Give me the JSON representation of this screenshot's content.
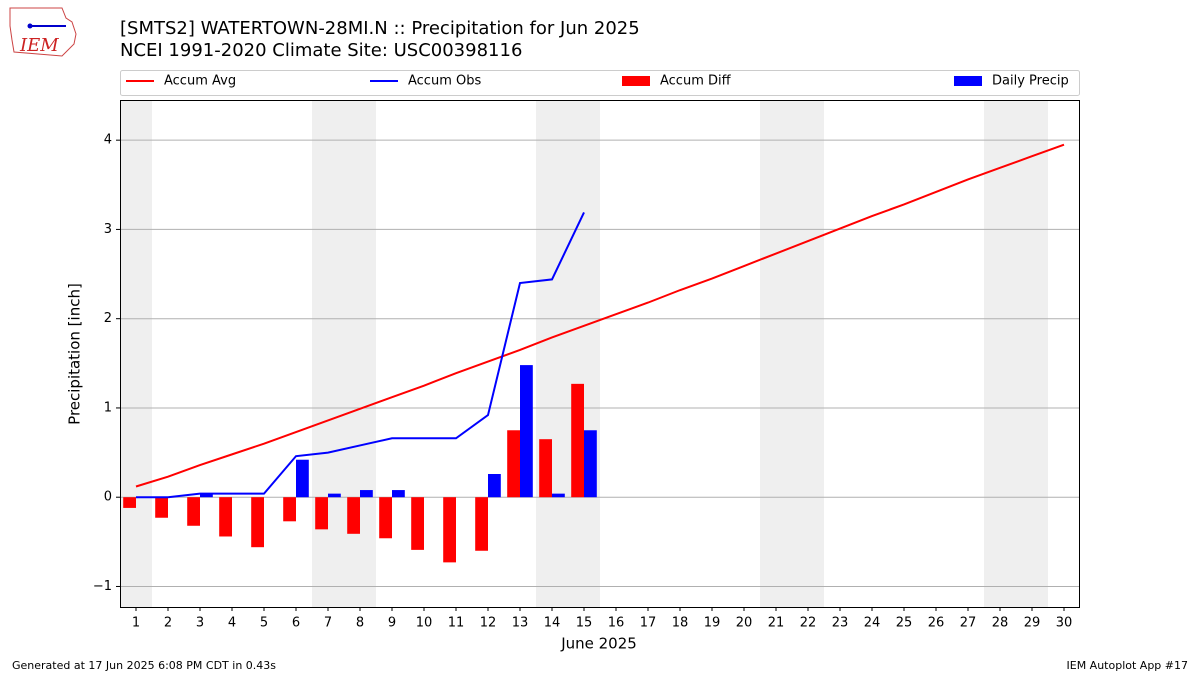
{
  "chart_data": {
    "type": "bar",
    "title": "[SMTS2] WATERTOWN-28MI.N :: Precipitation for Jun 2025",
    "subtitle": "NCEI 1991-2020 Climate Site: USC00398116",
    "logo_text": "IEM",
    "xlabel": "June 2025",
    "ylabel": "Precipitation [inch]",
    "x": [
      1,
      2,
      3,
      4,
      5,
      6,
      7,
      8,
      9,
      10,
      11,
      12,
      13,
      14,
      15,
      16,
      17,
      18,
      19,
      20,
      21,
      22,
      23,
      24,
      25,
      26,
      27,
      28,
      29,
      30
    ],
    "xlim": [
      0.5,
      30.5
    ],
    "xticks": [
      1,
      2,
      3,
      4,
      5,
      6,
      7,
      8,
      9,
      10,
      11,
      12,
      13,
      14,
      15,
      16,
      17,
      18,
      19,
      20,
      21,
      22,
      23,
      24,
      25,
      26,
      27,
      28,
      29,
      30
    ],
    "ylim": [
      -1.23,
      4.45
    ],
    "yticks": [
      {
        "value": -1,
        "label": "−1"
      },
      0,
      1,
      2,
      3,
      4
    ],
    "grid": true,
    "legend": "top",
    "series": [
      {
        "name": "Accum Avg",
        "type": "line",
        "color": "#ff0000",
        "values": [
          0.12,
          0.23,
          0.36,
          0.48,
          0.6,
          0.73,
          0.86,
          0.99,
          1.12,
          1.25,
          1.39,
          1.52,
          1.65,
          1.79,
          1.92,
          2.05,
          2.18,
          2.32,
          2.45,
          2.59,
          2.73,
          2.87,
          3.01,
          3.15,
          3.28,
          3.42,
          3.56,
          3.69,
          3.82,
          3.95
        ]
      },
      {
        "name": "Accum Obs",
        "type": "line",
        "color": "#0000ff",
        "values": [
          0,
          0,
          0.04,
          0.04,
          0.04,
          0.46,
          0.5,
          0.58,
          0.66,
          0.66,
          0.66,
          0.92,
          2.4,
          2.44,
          3.19,
          null,
          null,
          null,
          null,
          null,
          null,
          null,
          null,
          null,
          null,
          null,
          null,
          null,
          null,
          null
        ]
      },
      {
        "name": "Accum Diff",
        "type": "bar",
        "color": "#ff0000",
        "values": [
          -0.12,
          -0.23,
          -0.32,
          -0.44,
          -0.56,
          -0.27,
          -0.36,
          -0.41,
          -0.46,
          -0.59,
          -0.73,
          -0.6,
          0.75,
          0.65,
          1.27,
          null,
          null,
          null,
          null,
          null,
          null,
          null,
          null,
          null,
          null,
          null,
          null,
          null,
          null,
          null
        ]
      },
      {
        "name": "Daily Precip",
        "type": "bar",
        "color": "#0000ff",
        "values": [
          0,
          0,
          0.04,
          0,
          0,
          0.42,
          0.04,
          0.08,
          0.08,
          0,
          0,
          0.26,
          1.48,
          0.04,
          0.75,
          null,
          null,
          null,
          null,
          null,
          null,
          null,
          null,
          null,
          null,
          null,
          null,
          null,
          null,
          null
        ]
      }
    ],
    "footer_left": "Generated at 17 Jun 2025 6:08 PM CDT in 0.43s",
    "footer_right": "IEM Autoplot App #17"
  }
}
